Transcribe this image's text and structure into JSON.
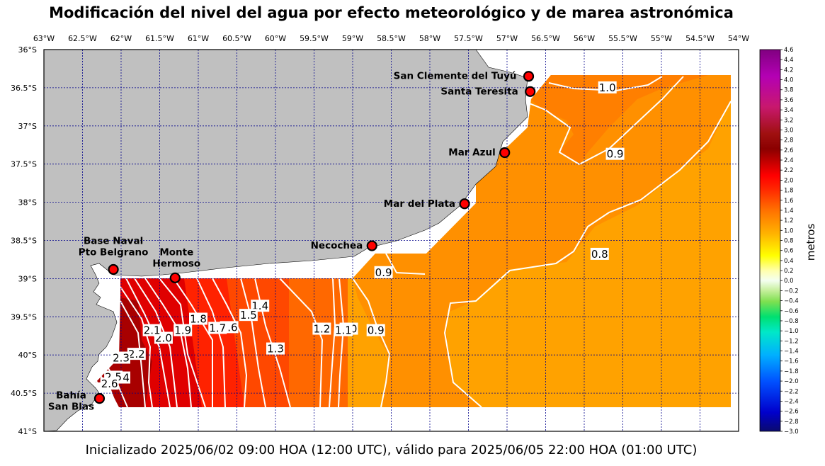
{
  "title": "Modificación del nivel del agua por efecto meteorológico y de marea astronómica",
  "caption": "Inicializado 2025/06/02 09:00 HOA (12:00 UTC), válido para 2025/06/05 22:00 HOA (01:00 UTC)",
  "colors": {
    "land": "#c0c0c0",
    "grid": "#00008b",
    "contour": "#ffffff",
    "station_fill": "#ff0000"
  },
  "map": {
    "lon_range": [
      -63.0,
      -54.0
    ],
    "lat_range": [
      -41.0,
      -36.0
    ],
    "x_ticks": [
      {
        "lon": -63.0,
        "label": "63°W"
      },
      {
        "lon": -62.5,
        "label": "62.5°W"
      },
      {
        "lon": -62.0,
        "label": "62°W"
      },
      {
        "lon": -61.5,
        "label": "61.5°W"
      },
      {
        "lon": -61.0,
        "label": "61°W"
      },
      {
        "lon": -60.5,
        "label": "60.5°W"
      },
      {
        "lon": -60.0,
        "label": "60°W"
      },
      {
        "lon": -59.5,
        "label": "59.5°W"
      },
      {
        "lon": -59.0,
        "label": "59°W"
      },
      {
        "lon": -58.5,
        "label": "58.5°W"
      },
      {
        "lon": -58.0,
        "label": "58°W"
      },
      {
        "lon": -57.5,
        "label": "57.5°W"
      },
      {
        "lon": -57.0,
        "label": "57°W"
      },
      {
        "lon": -56.5,
        "label": "56.5°W"
      },
      {
        "lon": -56.0,
        "label": "56°W"
      },
      {
        "lon": -55.5,
        "label": "55.5°W"
      },
      {
        "lon": -55.0,
        "label": "55°W"
      },
      {
        "lon": -54.5,
        "label": "54.5°W"
      },
      {
        "lon": -54.0,
        "label": "54°W"
      }
    ],
    "y_ticks": [
      {
        "lat": -36.0,
        "label": "36°S"
      },
      {
        "lat": -36.5,
        "label": "36.5°S"
      },
      {
        "lat": -37.0,
        "label": "37°S"
      },
      {
        "lat": -37.5,
        "label": "37.5°S"
      },
      {
        "lat": -38.0,
        "label": "38°S"
      },
      {
        "lat": -38.5,
        "label": "38.5°S"
      },
      {
        "lat": -39.0,
        "label": "39°S"
      },
      {
        "lat": -39.5,
        "label": "39.5°S"
      },
      {
        "lat": -40.0,
        "label": "40°S"
      },
      {
        "lat": -40.5,
        "label": "40.5°S"
      },
      {
        "lat": -41.0,
        "label": "41°S"
      }
    ],
    "stations": [
      {
        "name": "San Clemente del Tuyú",
        "lon": -56.72,
        "lat": -36.35
      },
      {
        "name": "Santa Teresita",
        "lon": -56.7,
        "lat": -36.55
      },
      {
        "name": "Mar Azul",
        "lon": -57.03,
        "lat": -37.35
      },
      {
        "name": "Mar del Plata",
        "lon": -57.55,
        "lat": -38.02
      },
      {
        "name": "Necochea",
        "lon": -58.75,
        "lat": -38.57
      },
      {
        "name": "Base Naval\nPto Belgrano",
        "lon": -62.1,
        "lat": -38.88
      },
      {
        "name": "Monte\nHermoso",
        "lon": -61.3,
        "lat": -38.99
      },
      {
        "name": "Bahía\nSan Blas",
        "lon": -62.28,
        "lat": -40.57
      }
    ],
    "contour_labels": [
      {
        "value": "1.0",
        "lon": -55.7,
        "lat": -36.5
      },
      {
        "value": "0.9",
        "lon": -55.6,
        "lat": -37.37
      },
      {
        "value": "0.8",
        "lon": -55.8,
        "lat": -38.68
      },
      {
        "value": "0.9",
        "lon": -58.6,
        "lat": -38.92
      },
      {
        "value": "0.9",
        "lon": -58.7,
        "lat": -39.68
      },
      {
        "value": "1.0",
        "lon": -59.05,
        "lat": -39.66
      },
      {
        "value": "1.1",
        "lon": -59.12,
        "lat": -39.68
      },
      {
        "value": "1.2",
        "lon": -59.4,
        "lat": -39.66
      },
      {
        "value": "1.3",
        "lon": -60.0,
        "lat": -39.92
      },
      {
        "value": "1.4",
        "lon": -60.2,
        "lat": -39.36
      },
      {
        "value": "1.5",
        "lon": -60.35,
        "lat": -39.48
      },
      {
        "value": "1.6",
        "lon": -60.6,
        "lat": -39.64
      },
      {
        "value": "1.7",
        "lon": -60.75,
        "lat": -39.65
      },
      {
        "value": "1.8",
        "lon": -61.0,
        "lat": -39.53
      },
      {
        "value": "1.9",
        "lon": -61.2,
        "lat": -39.68
      },
      {
        "value": "2.0",
        "lon": -61.45,
        "lat": -39.78
      },
      {
        "value": "2.1",
        "lon": -61.6,
        "lat": -39.68
      },
      {
        "value": "2.2",
        "lon": -61.8,
        "lat": -39.99
      },
      {
        "value": "2.3",
        "lon": -62.0,
        "lat": -40.04
      },
      {
        "value": "2.4",
        "lon": -62.0,
        "lat": -40.3
      },
      {
        "value": "2.5",
        "lon": -62.1,
        "lat": -40.29
      },
      {
        "value": "2.6",
        "lon": -62.15,
        "lat": -40.38
      }
    ]
  },
  "colorbar": {
    "label": "metros",
    "min": -3.0,
    "max": 4.6,
    "ticks": [
      "4.6",
      "4.4",
      "4.2",
      "4.0",
      "3.8",
      "3.6",
      "3.4",
      "3.2",
      "3.0",
      "2.8",
      "2.6",
      "2.4",
      "2.2",
      "2.0",
      "1.8",
      "1.6",
      "1.4",
      "1.2",
      "1.0",
      "0.8",
      "0.6",
      "0.4",
      "0.2",
      "0.0",
      "−0.2",
      "−0.4",
      "−0.6",
      "−0.8",
      "−1.0",
      "−1.2",
      "−1.4",
      "−1.6",
      "−1.8",
      "−2.0",
      "−2.2",
      "−2.4",
      "−2.6",
      "−2.8",
      "−3.0"
    ]
  }
}
